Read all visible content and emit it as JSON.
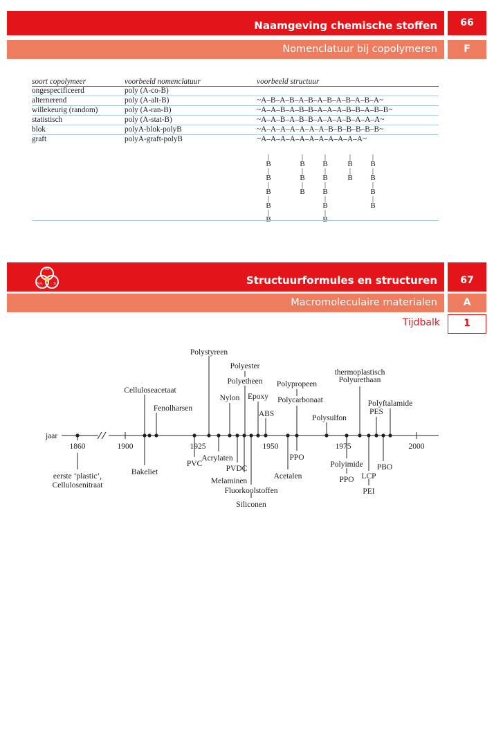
{
  "section66": {
    "title": "Naamgeving chemische stoffen",
    "number": "66",
    "subtitle": "Nomenclatuur bij copolymeren",
    "letter": "F"
  },
  "table": {
    "headers": [
      "soort copolymeer",
      "voorbeeld nomenclatuur",
      "voorbeeld structuur"
    ],
    "rows": [
      {
        "type": "ongespecificeerd",
        "nomenclature": "poly (A-co-B)",
        "structure": ""
      },
      {
        "type": "alternerend",
        "nomenclature": "poly (A-alt-B)",
        "structure": "~A–B–A–B–A–B–A–B–A–B–A–B–A~"
      },
      {
        "type": "willekeurig (random)",
        "nomenclature": "poly (A-ran-B)",
        "structure": "~A–A–B–A–B–B–A–A–A–B–B–A–B–B~"
      },
      {
        "type": "statistisch",
        "nomenclature": "poly (A-stat-B)",
        "structure": "~A–A–B–A–B–B–A–A–A–B–A–A–A~"
      },
      {
        "type": "blok",
        "nomenclature": "polyA-blok-polyB",
        "structure": "~A–A–A–A–A–A–A–B–B–B–B–B–B~"
      },
      {
        "type": "graft",
        "nomenclature": "polyA-graft-polyB",
        "structure": "~A–A–A–A–A–A–A–A–A–A–A~"
      }
    ],
    "graft_branches": [
      "B",
      "B",
      "B",
      "B",
      "B",
      "B",
      "B",
      "B",
      "B",
      "B",
      "B",
      "B",
      "B",
      "B",
      "B",
      "B",
      "B",
      "B",
      "B",
      "B"
    ]
  },
  "logo": {
    "top": "BI",
    "left": "NA",
    "right": "S"
  },
  "section67": {
    "title": "Structuurformules en structuren",
    "number": "67",
    "subtitle": "Macromoleculaire materialen",
    "letter": "A",
    "sub2": "Tijdbalk",
    "sub2_num": "1"
  },
  "timeline": {
    "axis_label": "jaar",
    "years": [
      "1860",
      "1900",
      "1925",
      "1950",
      "1975",
      "2000"
    ],
    "labels": {
      "plastic1": "eerste ‘plastic’,",
      "plastic2": "Cellulosenitraat",
      "celluloseacetaat": "Celluloseacetaat",
      "bakeliet": "Bakeliet",
      "fenolharsen": "Fenolharsen",
      "pvc": "PVC",
      "polystyreen": "Polystyreen",
      "acrylaten": "Acrylaten",
      "nylon": "Nylon",
      "pvdc": "PVDC",
      "polyester": "Polyester",
      "polyetheen": "Polyetheen",
      "melaminen": "Melaminen",
      "epoxy": "Epoxy",
      "fluorkoolstoffen": "Fluorkoolstoffen",
      "siliconen": "Siliconen",
      "abs": "ABS",
      "acetalen": "Acetalen",
      "polypropeen": "Polypropeen",
      "polycarbonaat": "Polycarbonaat",
      "ppo1": "PPO",
      "polysulfon": "Polysulfon",
      "polyimide": "Polyimide",
      "ppo2": "PPO",
      "thermo1": "thermoplastisch",
      "thermo2": "Polyurethaan",
      "lcp": "LCP",
      "pei": "PEI",
      "pes": "PES",
      "polyftalamide": "Polyftalamide",
      "pbo": "PBO"
    }
  }
}
